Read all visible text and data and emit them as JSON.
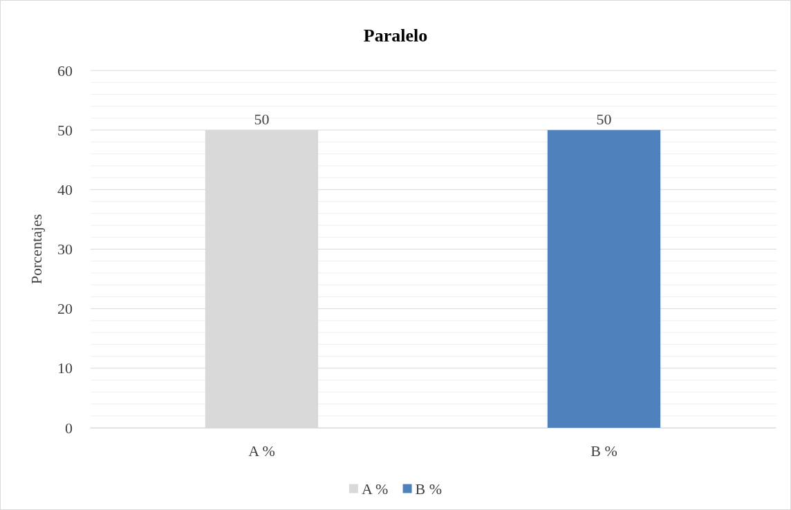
{
  "chart_data": {
    "type": "bar",
    "title": "Paralelo",
    "ylabel": "Porcentajes",
    "categories": [
      "A %",
      "B %"
    ],
    "series": [
      {
        "name": "A %",
        "color": "#d9d9d9",
        "values": [
          50,
          null
        ]
      },
      {
        "name": "B %",
        "color": "#4f81bd",
        "values": [
          null,
          50
        ]
      }
    ],
    "ylim": [
      0,
      60
    ],
    "yticks": [
      0,
      {
        "value": 2,
        "label": null
      },
      {
        "value": 4,
        "label": null
      },
      {
        "value": 6,
        "label": null
      },
      {
        "value": 8,
        "label": null
      },
      10,
      {
        "value": 12,
        "label": null
      },
      {
        "value": 14,
        "label": null
      },
      {
        "value": 16,
        "label": null
      },
      {
        "value": 18,
        "label": null
      },
      20,
      {
        "value": 22,
        "label": null
      },
      {
        "value": 24,
        "label": null
      },
      {
        "value": 26,
        "label": null
      },
      {
        "value": 28,
        "label": null
      },
      30,
      {
        "value": 32,
        "label": null
      },
      {
        "value": 34,
        "label": null
      },
      {
        "value": 36,
        "label": null
      },
      {
        "value": 38,
        "label": null
      },
      40,
      {
        "value": 42,
        "label": null
      },
      {
        "value": 44,
        "label": null
      },
      {
        "value": 46,
        "label": null
      },
      {
        "value": 48,
        "label": null
      },
      50,
      {
        "value": 52,
        "label": null
      },
      {
        "value": 54,
        "label": null
      },
      {
        "value": 56,
        "label": null
      },
      {
        "value": 58,
        "label": null
      },
      60
    ],
    "grid": "y",
    "legend": "bottom",
    "data_labels": true
  }
}
